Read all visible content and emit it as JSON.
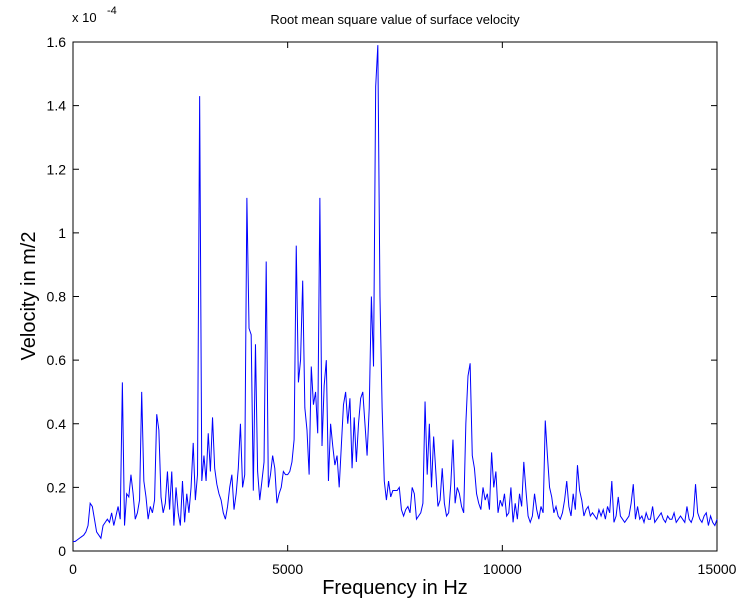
{
  "chart_data": {
    "type": "line",
    "title": "Root mean square value of surface velocity",
    "xlabel": "Frequency in Hz",
    "ylabel": "Velocity in m/2",
    "xlim": [
      0,
      15000
    ],
    "ylim": [
      0,
      1.6
    ],
    "x_ticks": [
      0,
      5000,
      10000,
      15000
    ],
    "x_tick_labels": [
      "0",
      "5000",
      "10000",
      "15000"
    ],
    "y_ticks": [
      0,
      0.2,
      0.4,
      0.6,
      0.8,
      1,
      1.2,
      1.4,
      1.6
    ],
    "y_tick_labels": [
      "0",
      "0.2",
      "0.4",
      "0.6",
      "0.8",
      "1",
      "1.2",
      "1.4",
      "1.6"
    ],
    "y_multiplier": {
      "base": "x 10",
      "exponent": "-4"
    },
    "grid": false,
    "line_color": "#0000ff",
    "series": [
      {
        "x": [
          0,
          50,
          100,
          150,
          200,
          250,
          300,
          350,
          400,
          450,
          500,
          550,
          600,
          650,
          700,
          750,
          800,
          850,
          900,
          950,
          1000,
          1050,
          1100,
          1150,
          1200,
          1250,
          1300,
          1350,
          1400,
          1450,
          1500,
          1550,
          1600,
          1650,
          1700,
          1750,
          1800,
          1850,
          1900,
          1950,
          2000,
          2050,
          2100,
          2150,
          2200,
          2250,
          2300,
          2350,
          2400,
          2450,
          2500,
          2550,
          2600,
          2650,
          2700,
          2750,
          2800,
          2850,
          2900,
          2950,
          3000,
          3050,
          3100,
          3150,
          3200,
          3250,
          3300,
          3350,
          3400,
          3450,
          3500,
          3550,
          3600,
          3650,
          3700,
          3750,
          3800,
          3850,
          3900,
          3950,
          4000,
          4050,
          4100,
          4150,
          4200,
          4250,
          4300,
          4350,
          4400,
          4450,
          4500,
          4550,
          4600,
          4650,
          4700,
          4750,
          4800,
          4850,
          4900,
          4950,
          5000,
          5050,
          5100,
          5150,
          5200,
          5250,
          5300,
          5350,
          5400,
          5450,
          5500,
          5550,
          5600,
          5650,
          5700,
          5750,
          5800,
          5850,
          5900,
          5950,
          6000,
          6050,
          6100,
          6150,
          6200,
          6250,
          6300,
          6350,
          6400,
          6450,
          6500,
          6550,
          6600,
          6650,
          6700,
          6750,
          6800,
          6850,
          6900,
          6950,
          7000,
          7050,
          7100,
          7150,
          7200,
          7250,
          7300,
          7350,
          7400,
          7450,
          7500,
          7550,
          7600,
          7650,
          7700,
          7750,
          7800,
          7850,
          7900,
          7950,
          8000,
          8050,
          8100,
          8150,
          8200,
          8250,
          8300,
          8350,
          8400,
          8450,
          8500,
          8550,
          8600,
          8650,
          8700,
          8750,
          8800,
          8850,
          8900,
          8950,
          9000,
          9050,
          9100,
          9150,
          9200,
          9250,
          9300,
          9350,
          9400,
          9450,
          9500,
          9550,
          9600,
          9650,
          9700,
          9750,
          9800,
          9850,
          9900,
          9950,
          10000,
          10050,
          10100,
          10150,
          10200,
          10250,
          10300,
          10350,
          10400,
          10450,
          10500,
          10550,
          10600,
          10650,
          10700,
          10750,
          10800,
          10850,
          10900,
          10950,
          11000,
          11050,
          11100,
          11150,
          11200,
          11250,
          11300,
          11350,
          11400,
          11450,
          11500,
          11550,
          11600,
          11650,
          11700,
          11750,
          11800,
          11850,
          11900,
          11950,
          12000,
          12050,
          12100,
          12150,
          12200,
          12250,
          12300,
          12350,
          12400,
          12450,
          12500,
          12550,
          12600,
          12650,
          12700,
          12750,
          12800,
          12850,
          12900,
          12950,
          13000,
          13050,
          13100,
          13150,
          13200,
          13250,
          13300,
          13350,
          13400,
          13450,
          13500,
          13550,
          13600,
          13650,
          13700,
          13750,
          13800,
          13850,
          13900,
          13950,
          14000,
          14050,
          14100,
          14150,
          14200,
          14250,
          14300,
          14350,
          14400,
          14450,
          14500,
          14550,
          14600,
          14650,
          14700,
          14750,
          14800,
          14850,
          14900,
          14950,
          15000
        ],
        "y": [
          0.03,
          0.03,
          0.035,
          0.04,
          0.045,
          0.05,
          0.06,
          0.08,
          0.15,
          0.14,
          0.1,
          0.06,
          0.05,
          0.04,
          0.08,
          0.09,
          0.1,
          0.09,
          0.12,
          0.08,
          0.11,
          0.14,
          0.1,
          0.53,
          0.08,
          0.18,
          0.17,
          0.24,
          0.18,
          0.1,
          0.12,
          0.16,
          0.5,
          0.22,
          0.17,
          0.1,
          0.14,
          0.12,
          0.16,
          0.43,
          0.38,
          0.17,
          0.12,
          0.15,
          0.25,
          0.13,
          0.25,
          0.08,
          0.2,
          0.12,
          0.08,
          0.22,
          0.09,
          0.18,
          0.12,
          0.2,
          0.34,
          0.16,
          0.24,
          1.43,
          0.22,
          0.3,
          0.22,
          0.37,
          0.25,
          0.42,
          0.26,
          0.21,
          0.18,
          0.16,
          0.12,
          0.1,
          0.14,
          0.2,
          0.24,
          0.13,
          0.18,
          0.26,
          0.4,
          0.2,
          0.24,
          1.11,
          0.7,
          0.68,
          0.19,
          0.65,
          0.25,
          0.16,
          0.22,
          0.28,
          0.91,
          0.2,
          0.24,
          0.3,
          0.26,
          0.15,
          0.18,
          0.2,
          0.25,
          0.24,
          0.24,
          0.25,
          0.28,
          0.35,
          0.96,
          0.53,
          0.6,
          0.85,
          0.45,
          0.38,
          0.24,
          0.58,
          0.46,
          0.5,
          0.37,
          1.11,
          0.33,
          0.52,
          0.6,
          0.22,
          0.4,
          0.33,
          0.27,
          0.3,
          0.2,
          0.33,
          0.46,
          0.5,
          0.4,
          0.48,
          0.26,
          0.42,
          0.28,
          0.4,
          0.48,
          0.5,
          0.4,
          0.3,
          0.45,
          0.8,
          0.58,
          1.46,
          1.59,
          0.8,
          0.45,
          0.22,
          0.16,
          0.22,
          0.17,
          0.19,
          0.19,
          0.19,
          0.2,
          0.13,
          0.11,
          0.13,
          0.14,
          0.12,
          0.2,
          0.18,
          0.1,
          0.11,
          0.12,
          0.15,
          0.47,
          0.24,
          0.4,
          0.2,
          0.36,
          0.25,
          0.14,
          0.16,
          0.26,
          0.15,
          0.11,
          0.12,
          0.21,
          0.35,
          0.15,
          0.2,
          0.18,
          0.14,
          0.12,
          0.4,
          0.55,
          0.59,
          0.3,
          0.26,
          0.18,
          0.15,
          0.13,
          0.2,
          0.16,
          0.18,
          0.13,
          0.31,
          0.2,
          0.25,
          0.12,
          0.16,
          0.14,
          0.18,
          0.11,
          0.12,
          0.2,
          0.09,
          0.15,
          0.1,
          0.18,
          0.14,
          0.28,
          0.19,
          0.11,
          0.09,
          0.11,
          0.18,
          0.13,
          0.1,
          0.14,
          0.12,
          0.41,
          0.3,
          0.2,
          0.17,
          0.12,
          0.14,
          0.11,
          0.1,
          0.12,
          0.16,
          0.22,
          0.14,
          0.11,
          0.18,
          0.13,
          0.27,
          0.19,
          0.16,
          0.11,
          0.13,
          0.14,
          0.11,
          0.12,
          0.11,
          0.1,
          0.13,
          0.11,
          0.13,
          0.1,
          0.14,
          0.12,
          0.22,
          0.09,
          0.11,
          0.17,
          0.11,
          0.1,
          0.09,
          0.1,
          0.11,
          0.15,
          0.21,
          0.1,
          0.14,
          0.1,
          0.11,
          0.09,
          0.12,
          0.1,
          0.1,
          0.14,
          0.09,
          0.1,
          0.11,
          0.12,
          0.1,
          0.09,
          0.11,
          0.1,
          0.1,
          0.12,
          0.09,
          0.1,
          0.11,
          0.1,
          0.09,
          0.14,
          0.1,
          0.09,
          0.11,
          0.21,
          0.12,
          0.1,
          0.09,
          0.11,
          0.12,
          0.08,
          0.11,
          0.09,
          0.08,
          0.1
        ]
      }
    ]
  }
}
